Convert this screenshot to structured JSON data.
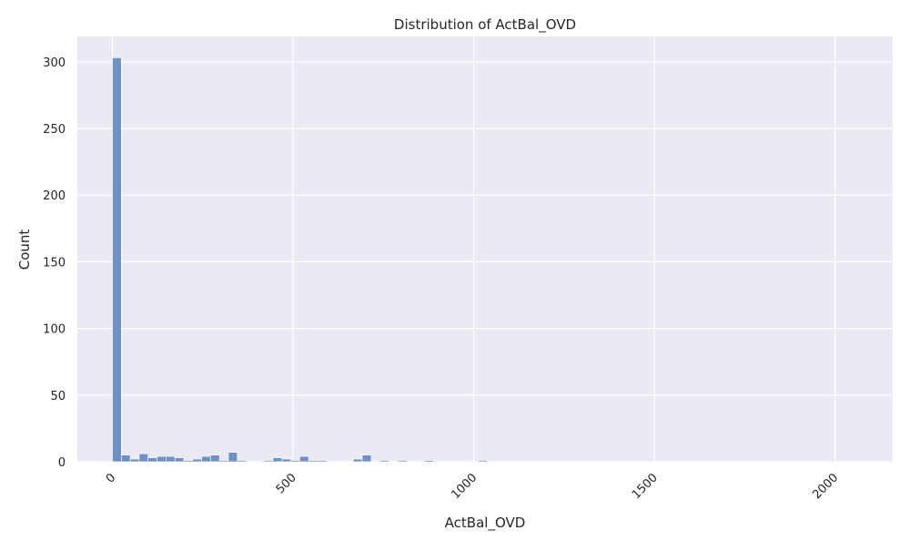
{
  "chart_data": {
    "type": "bar",
    "title": "Distribution of ActBal_OVD",
    "xlabel": "ActBal_OVD",
    "ylabel": "Count",
    "xlim": [
      -97,
      2160
    ],
    "ylim": [
      0,
      319
    ],
    "x_ticks": [
      {
        "value": 0,
        "label": "0"
      },
      {
        "value": 500,
        "label": "500"
      },
      {
        "value": 1000,
        "label": "1000"
      },
      {
        "value": 1500,
        "label": "1500"
      },
      {
        "value": 2000,
        "label": "2000"
      }
    ],
    "y_ticks": [
      {
        "value": 0,
        "label": "0"
      },
      {
        "value": 50,
        "label": "50"
      },
      {
        "value": 100,
        "label": "100"
      },
      {
        "value": 150,
        "label": "150"
      },
      {
        "value": 200,
        "label": "200"
      },
      {
        "value": 250,
        "label": "250"
      },
      {
        "value": 300,
        "label": "300"
      }
    ],
    "bins": {
      "start": 0,
      "width": 24.7,
      "counts": [
        303,
        5,
        2,
        6,
        3,
        4,
        4,
        3,
        1,
        2,
        4,
        5,
        1,
        7,
        1,
        0,
        0,
        1,
        3,
        2,
        1,
        4,
        1,
        1,
        0,
        0,
        0,
        2,
        5,
        0,
        1,
        0,
        1,
        0,
        0,
        1,
        0,
        0,
        0,
        0,
        0,
        1
      ]
    },
    "grid": true,
    "legend": "none",
    "colors": {
      "bar_fill": "#7090c6",
      "bar_edge": "#ffffff",
      "plot_background": "#eaeaf2",
      "grid": "#ffffff"
    }
  }
}
